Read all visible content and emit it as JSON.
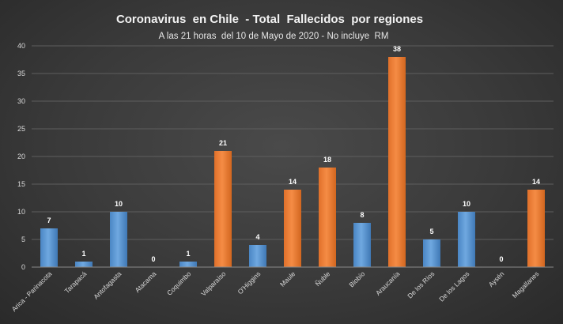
{
  "chart_data": {
    "type": "bar",
    "title": "Coronavirus  en Chile  - Total  Fallecidos  por regiones",
    "subtitle": "A las 21 horas  del 10 de Mayo de 2020 - No incluye  RM",
    "categories": [
      "Arica - Parinacota",
      "Tarapacá",
      "Antofagasta",
      "Atacama",
      "Coquimbo",
      "Valparaíso",
      "O'Higgins",
      "Maule",
      "Ñuble",
      "Biobío",
      "Araucanía",
      "De los Ríos",
      "De los Lagos",
      "Aysén",
      "Magallanes"
    ],
    "values": [
      7,
      1,
      10,
      0,
      1,
      21,
      4,
      14,
      18,
      8,
      38,
      5,
      10,
      0,
      14
    ],
    "bar_colors": [
      "blue",
      "blue",
      "blue",
      "blue",
      "blue",
      "orange",
      "blue",
      "orange",
      "orange",
      "blue",
      "orange",
      "blue",
      "blue",
      "blue",
      "orange"
    ],
    "colors": {
      "blue": "#5b9bd5",
      "orange": "#ed7d31"
    },
    "ylim": [
      0,
      40
    ],
    "yticks": [
      0,
      5,
      10,
      15,
      20,
      25,
      30,
      35,
      40
    ],
    "grid": true,
    "legend": "none"
  }
}
